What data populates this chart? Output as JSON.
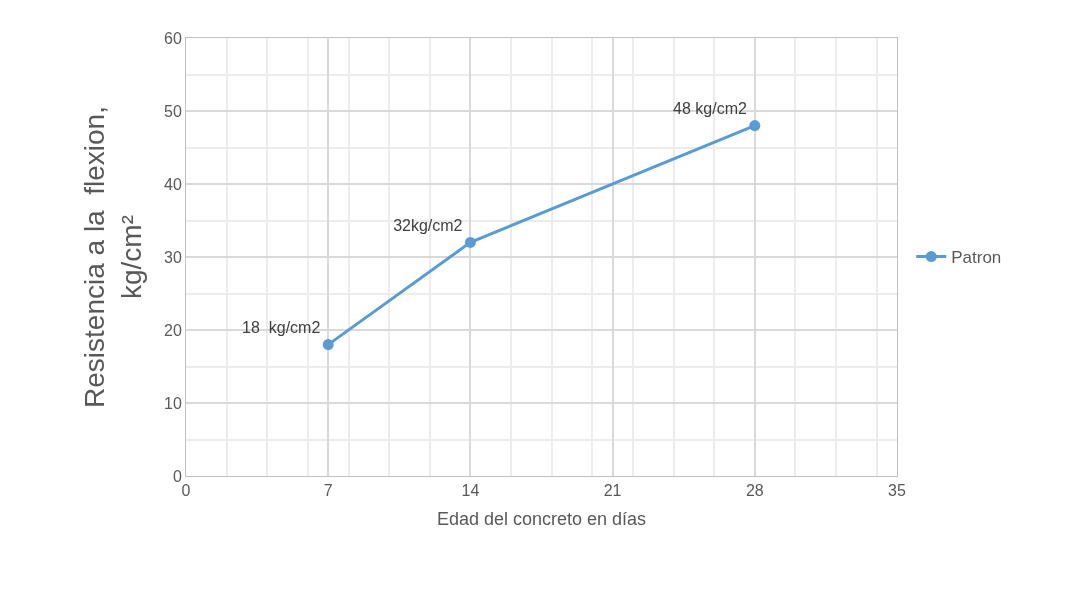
{
  "chart_data": {
    "type": "line",
    "xlabel": "Edad del concreto en días",
    "ylabel": "Resistencia a la  flexion,\nkg/cm²",
    "x": [
      7,
      14,
      28
    ],
    "series": [
      {
        "name": "Patron",
        "color": "#5b9bd5",
        "values": [
          18,
          32,
          48
        ],
        "value_labels": [
          "18  kg/cm2",
          "32kg/cm2",
          "48 kg/cm2"
        ]
      }
    ],
    "xlim": [
      0,
      35
    ],
    "xticks": [
      0,
      7,
      14,
      21,
      28,
      35
    ],
    "ylim": [
      0,
      60
    ],
    "yticks": [
      0,
      10,
      20,
      30,
      40,
      50,
      60
    ],
    "grid": true,
    "legend": "right",
    "marker": "circle",
    "line_style": "solid"
  }
}
